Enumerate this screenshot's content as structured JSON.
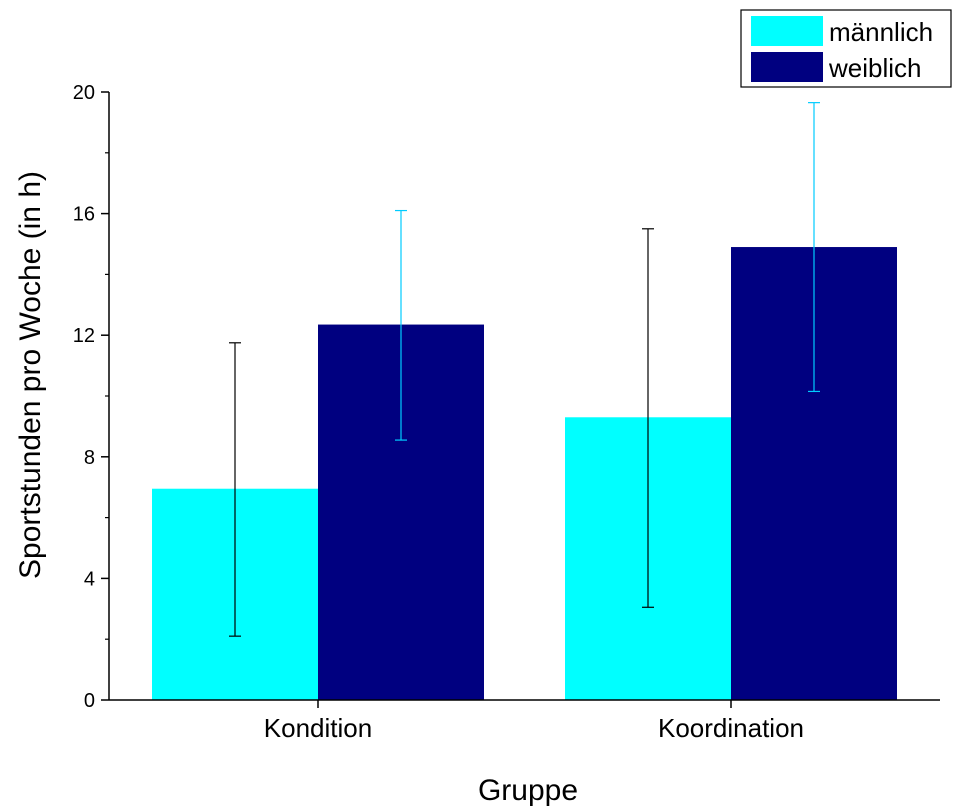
{
  "chart_data": {
    "type": "bar",
    "categories": [
      "Kondition",
      "Koordination"
    ],
    "series": [
      {
        "name": "männlich",
        "color": "#00ffff",
        "values": [
          6.95,
          9.3
        ],
        "error_low": [
          2.1,
          3.05
        ],
        "error_high": [
          11.75,
          15.5
        ],
        "errorbar_color": "#000000"
      },
      {
        "name": "weiblich",
        "color": "#000080",
        "values": [
          12.35,
          14.9
        ],
        "error_low": [
          8.55,
          10.15
        ],
        "error_high": [
          16.1,
          19.65
        ],
        "errorbar_color": "#00ccff"
      }
    ],
    "title": "",
    "xlabel": "Gruppe",
    "ylabel": "Sportstunden pro Woche (in h)",
    "ylim": [
      0,
      20
    ],
    "yticks": [
      "0",
      "4",
      "8",
      "12",
      "16",
      "20"
    ],
    "legend_placement": "top-right",
    "grid": false
  }
}
